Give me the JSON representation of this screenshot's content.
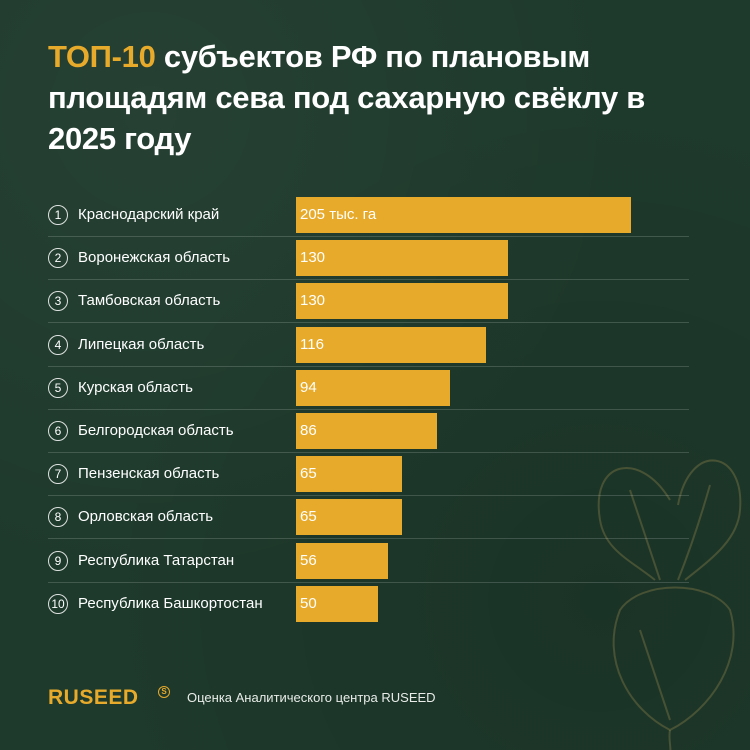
{
  "header": {
    "title_accent": "ТОП-10",
    "title_rest": " субъектов РФ по плановым площадям сева под сахарную свёклу в 2025 году"
  },
  "footer": {
    "logo": "RUSEED",
    "logo_mark": "S",
    "source": "Оценка Аналитического центра RUSEED"
  },
  "colors": {
    "background": "#1e3a2c",
    "accent": "#e8aa2a"
  },
  "chart_data": {
    "type": "bar",
    "orientation": "horizontal",
    "unit": "тыс. га",
    "categories": [
      "Краснодарский край",
      "Воронежская область",
      "Тамбовская область",
      "Липецкая область",
      "Курская область",
      "Белгородская область",
      "Пензенская область",
      "Орловская область",
      "Республика Татарстан",
      "Республика Башкортостан"
    ],
    "ranks": [
      "1",
      "2",
      "3",
      "4",
      "5",
      "6",
      "7",
      "8",
      "9",
      "10"
    ],
    "values": [
      205,
      130,
      130,
      116,
      94,
      86,
      65,
      65,
      56,
      50
    ],
    "value_labels": [
      "205 тыс. га",
      "130",
      "130",
      "116",
      "94",
      "86",
      "65",
      "65",
      "56",
      "50"
    ],
    "xlim": [
      0,
      205
    ],
    "grid": false,
    "legend": false
  }
}
